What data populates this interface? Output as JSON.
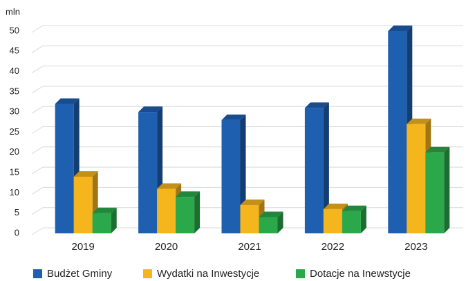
{
  "chart_data": {
    "type": "bar3d",
    "y_label": "mln",
    "categories": [
      "2019",
      "2020",
      "2021",
      "2022",
      "2023"
    ],
    "series": [
      {
        "name": "Budżet Gminy",
        "color": "#1f5fb0",
        "values": [
          32,
          30,
          28,
          31,
          50
        ]
      },
      {
        "name": "Wydatki na Inwestycje",
        "color": "#f5b51d",
        "values": [
          14,
          11,
          7,
          6,
          27
        ]
      },
      {
        "name": "Dotacje na Inewstycje",
        "color": "#2aa84a",
        "values": [
          5,
          9,
          4,
          5.5,
          20
        ]
      }
    ],
    "ylim": [
      0,
      50
    ],
    "yticks": [
      0,
      5,
      10,
      15,
      20,
      25,
      30,
      35,
      40,
      45,
      50
    ],
    "grid": true
  }
}
